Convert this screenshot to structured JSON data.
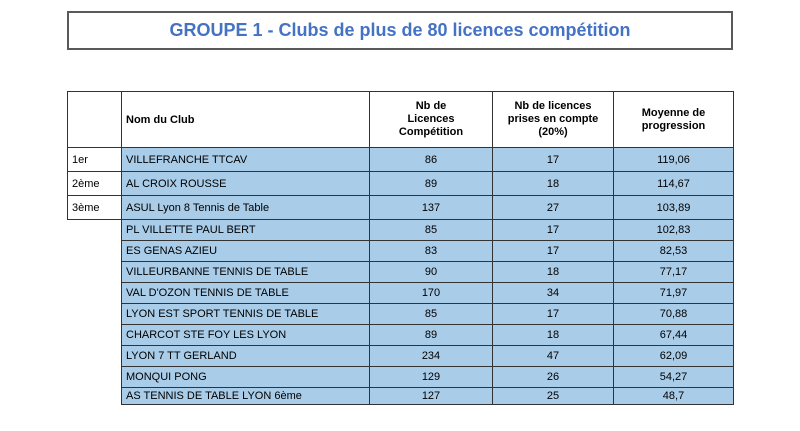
{
  "title": "GROUPE 1 - Clubs de plus de 80 licences compétition",
  "colors": {
    "highlight": "#A9CCE8",
    "title_text": "#4472C4",
    "border": "#333333"
  },
  "table": {
    "headers": {
      "rank": "",
      "club": "Nom du Club",
      "licences": "Nb de\nLicences\nCompétition",
      "prises": "Nb de licences\nprises en compte\n(20%)",
      "moyenne": "Moyenne de\nprogression"
    },
    "rows": [
      {
        "rank": "1er",
        "club": "VILLEFRANCHE TTCAV",
        "licences": "86",
        "prises": "17",
        "moyenne": "119,06"
      },
      {
        "rank": "2ème",
        "club": "AL CROIX ROUSSE",
        "licences": "89",
        "prises": "18",
        "moyenne": "114,67"
      },
      {
        "rank": "3ème",
        "club": "ASUL Lyon 8 Tennis de Table",
        "licences": "137",
        "prises": "27",
        "moyenne": "103,89"
      },
      {
        "rank": "",
        "club": "PL VILLETTE PAUL BERT",
        "licences": "85",
        "prises": "17",
        "moyenne": "102,83"
      },
      {
        "rank": "",
        "club": "ES GENAS AZIEU",
        "licences": "83",
        "prises": "17",
        "moyenne": "82,53"
      },
      {
        "rank": "",
        "club": "VILLEURBANNE TENNIS DE TABLE",
        "licences": "90",
        "prises": "18",
        "moyenne": "77,17"
      },
      {
        "rank": "",
        "club": "VAL D'OZON TENNIS DE TABLE",
        "licences": "170",
        "prises": "34",
        "moyenne": "71,97"
      },
      {
        "rank": "",
        "club": "LYON EST SPORT TENNIS DE TABLE",
        "licences": "85",
        "prises": "17",
        "moyenne": "70,88"
      },
      {
        "rank": "",
        "club": "CHARCOT STE FOY LES LYON",
        "licences": "89",
        "prises": "18",
        "moyenne": "67,44"
      },
      {
        "rank": "",
        "club": "LYON 7 TT GERLAND",
        "licences": "234",
        "prises": "47",
        "moyenne": "62,09"
      },
      {
        "rank": "",
        "club": "MONQUI PONG",
        "licences": "129",
        "prises": "26",
        "moyenne": "54,27"
      },
      {
        "rank": "",
        "club": "AS TENNIS DE TABLE LYON 6ème",
        "licences": "127",
        "prises": "25",
        "moyenne": "48,7"
      }
    ]
  }
}
